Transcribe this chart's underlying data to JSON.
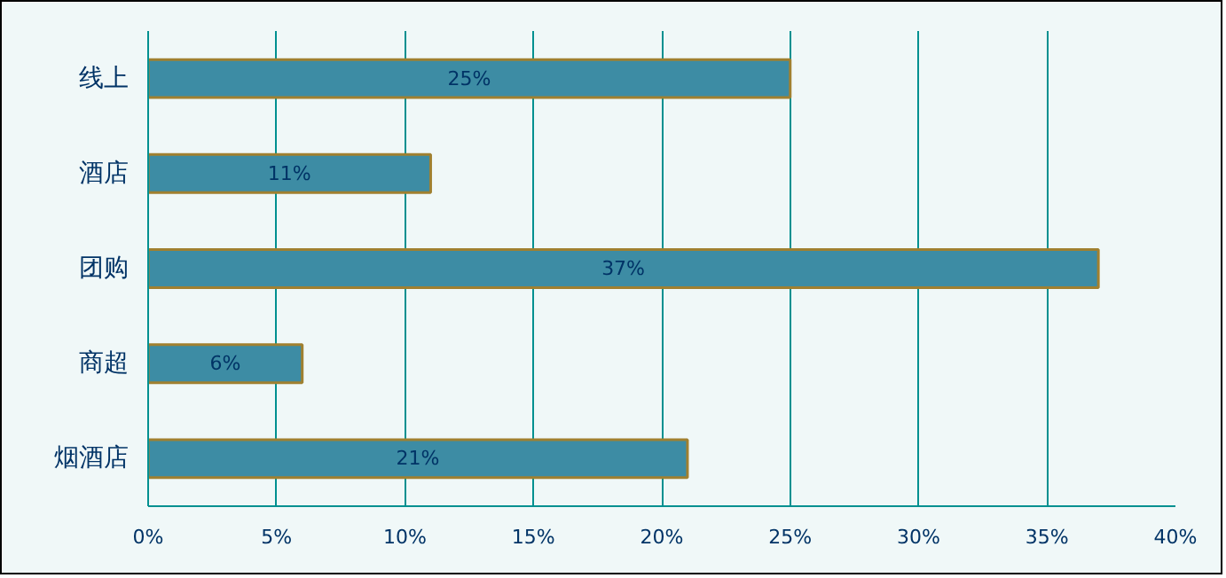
{
  "chart_data": {
    "type": "bar",
    "orientation": "horizontal",
    "categories": [
      "线上",
      "酒店",
      "团购",
      "商超",
      "烟酒店"
    ],
    "values": [
      25,
      11,
      37,
      6,
      21
    ],
    "color": "#3d8ca4",
    "value_labels": [
      "25%",
      "11%",
      "37%",
      "6%",
      "21%"
    ],
    "xlim": [
      0,
      40
    ],
    "xticks": [
      {
        "value": 0,
        "label": "0%"
      },
      {
        "value": 5,
        "label": "5%"
      },
      {
        "value": 10,
        "label": "10%"
      },
      {
        "value": 15,
        "label": "15%"
      },
      {
        "value": 20,
        "label": "20%"
      },
      {
        "value": 25,
        "label": "25%"
      },
      {
        "value": 30,
        "label": "30%"
      },
      {
        "value": 35,
        "label": "35%"
      },
      {
        "value": 40,
        "label": "40%"
      }
    ],
    "grid": "x"
  }
}
